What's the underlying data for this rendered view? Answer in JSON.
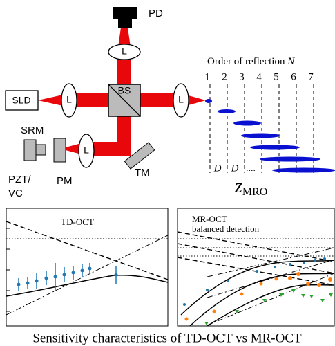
{
  "diagram": {
    "labels": {
      "pd": "PD",
      "lens": "L",
      "sld": "SLD",
      "bs": "BS",
      "srm": "SRM",
      "pzt": "PZT/",
      "vc": "VC",
      "pm": "PM",
      "tm": "TM"
    },
    "order_title": "Order of reflection",
    "order_symbol": "N",
    "orders": [
      "1",
      "2",
      "3",
      "4",
      "5",
      "6",
      "7"
    ],
    "spacing": "D",
    "dots": "....",
    "z": "z",
    "z_sub": "MRO"
  },
  "plots": {
    "left": {
      "title": "TD-OCT"
    },
    "right": {
      "title": [
        "MR-OCT",
        "balanced detection"
      ]
    }
  },
  "caption": "Sensitivity characteristics of TD-OCT vs MR-OCT"
}
